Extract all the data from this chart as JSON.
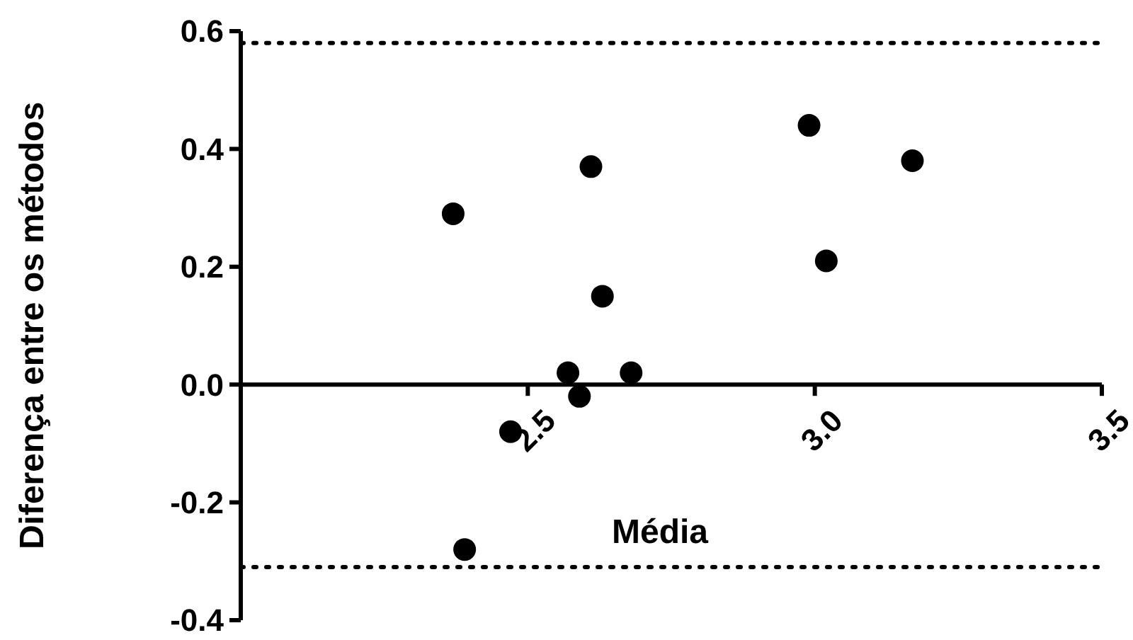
{
  "chart_data": {
    "type": "scatter",
    "xlabel": "Média",
    "ylabel": "Diferença entre os métodos",
    "x": [
      2.37,
      2.61,
      2.99,
      3.17,
      3.02,
      2.63,
      2.57,
      2.59,
      2.68,
      2.47,
      2.39
    ],
    "series": [
      {
        "color": "#000000",
        "values": [
          0.29,
          0.37,
          0.44,
          0.38,
          0.21,
          0.15,
          0.02,
          -0.02,
          0.02,
          -0.08,
          -0.28
        ]
      }
    ],
    "xlim": [
      2.0,
      3.5
    ],
    "xticks": [
      {
        "value": 2.5,
        "label": "2.5"
      },
      {
        "value": 3.0,
        "label": "3.0"
      },
      {
        "value": 3.5,
        "label": "3.5"
      }
    ],
    "ylim": [
      -0.4,
      0.6
    ],
    "yticks": [
      {
        "value": -0.4,
        "label": "-0.4"
      },
      {
        "value": -0.2,
        "label": "-0.2"
      },
      {
        "value": 0,
        "label": "0.0"
      },
      {
        "value": 0.2,
        "label": "0.2"
      },
      {
        "value": 0.4,
        "label": "0.4"
      },
      {
        "value": 0.6,
        "label": "0.6"
      }
    ],
    "ref_lines": [
      {
        "axis": "y",
        "value": 0.58,
        "line_style": "dotted",
        "color": "#000000"
      },
      {
        "axis": "y",
        "value": -0.31,
        "line_style": "dotted",
        "color": "#000000"
      }
    ],
    "marker": "circle",
    "grid": false
  }
}
